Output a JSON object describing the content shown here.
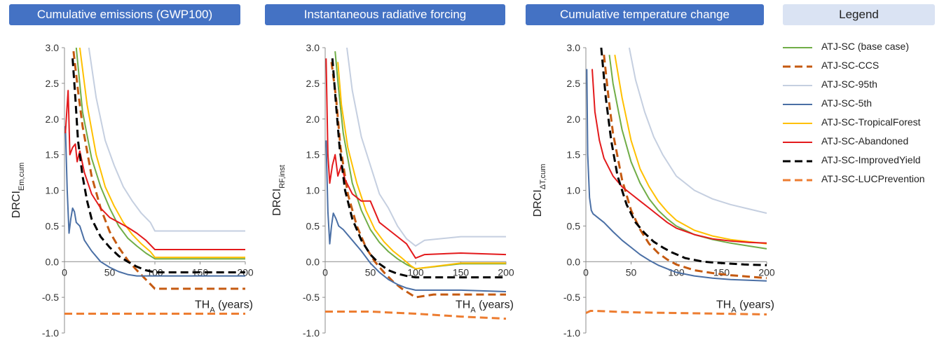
{
  "headers": {
    "panel1": "Cumulative emissions (GWP100)",
    "panel2": "Instantaneous radiative forcing",
    "panel3": "Cumulative temperature change",
    "legend": "Legend"
  },
  "xlabel": {
    "main": "TH",
    "sub": "A",
    "tail": " (years)"
  },
  "ylabels": [
    {
      "main": "DRCI",
      "sub": "Em,cum"
    },
    {
      "main": "DRCI",
      "sub": "RF,inst"
    },
    {
      "main": "DRCI",
      "sub": "ΔT,cum"
    }
  ],
  "legend": [
    {
      "label": "ATJ-SC (base case)",
      "color": "#70ad47",
      "dash": "solid"
    },
    {
      "label": "ATJ-SC-CCS",
      "color": "#c55a11",
      "dash": "dashed"
    },
    {
      "label": "ATJ-SC-95th",
      "color": "#c5cfe0",
      "dash": "solid"
    },
    {
      "label": "ATJ-SC-5th",
      "color": "#4a6fa5",
      "dash": "solid"
    },
    {
      "label": "ATJ-SC-TropicalForest",
      "color": "#ffc000",
      "dash": "solid"
    },
    {
      "label": "ATJ-SC-Abandoned",
      "color": "#e31a1c",
      "dash": "solid"
    },
    {
      "label": "ATJ-SC-ImprovedYield",
      "color": "#000000",
      "dash": "dashed"
    },
    {
      "label": "ATJ-SC-LUCPrevention",
      "color": "#ed7d31",
      "dash": "dashed"
    }
  ],
  "chart_data": [
    {
      "type": "line",
      "title": "Cumulative emissions (GWP100)",
      "xlabel": "TH_A (years)",
      "ylabel": "DRCI_Em,cum",
      "xlim": [
        0,
        200
      ],
      "ylim": [
        -1.0,
        3.0
      ],
      "xticks": [
        "0",
        "50",
        "100",
        "150",
        "200"
      ],
      "yticks": [
        "-1.0",
        "-0.5",
        "0.0",
        "0.5",
        "1.0",
        "1.5",
        "2.0",
        "2.5",
        "3.0"
      ],
      "series": [
        {
          "name": "ATJ-SC (base case)",
          "x": [
            13,
            20,
            30,
            40,
            50,
            60,
            70,
            80,
            90,
            100,
            150,
            200
          ],
          "y": [
            3.0,
            2.1,
            1.45,
            1.05,
            0.75,
            0.5,
            0.33,
            0.22,
            0.12,
            0.04,
            0.04,
            0.04
          ]
        },
        {
          "name": "ATJ-SC-CCS",
          "x": [
            10,
            15,
            20,
            30,
            40,
            50,
            60,
            70,
            80,
            90,
            100,
            150,
            200
          ],
          "y": [
            2.95,
            2.4,
            1.9,
            1.2,
            0.75,
            0.42,
            0.2,
            0.02,
            -0.12,
            -0.25,
            -0.38,
            -0.38,
            -0.38
          ]
        },
        {
          "name": "ATJ-SC-95th",
          "x": [
            27,
            35,
            45,
            55,
            65,
            75,
            85,
            95,
            100,
            150,
            200
          ],
          "y": [
            3.0,
            2.3,
            1.7,
            1.35,
            1.05,
            0.85,
            0.68,
            0.55,
            0.43,
            0.43,
            0.43
          ]
        },
        {
          "name": "ATJ-SC-5th",
          "x": [
            1,
            3,
            5,
            7,
            9,
            11,
            13,
            17,
            22,
            30,
            40,
            50,
            60,
            70,
            80,
            90,
            100,
            150,
            200
          ],
          "y": [
            1.9,
            1.0,
            0.4,
            0.6,
            0.75,
            0.7,
            0.55,
            0.5,
            0.3,
            0.15,
            0.0,
            -0.08,
            -0.14,
            -0.18,
            -0.2,
            -0.2,
            -0.2,
            -0.2,
            -0.2
          ]
        },
        {
          "name": "ATJ-SC-TropicalForest",
          "x": [
            17,
            25,
            35,
            45,
            55,
            65,
            75,
            85,
            95,
            100,
            150,
            200
          ],
          "y": [
            3.0,
            2.2,
            1.5,
            1.05,
            0.78,
            0.55,
            0.38,
            0.25,
            0.14,
            0.06,
            0.06,
            0.06
          ]
        },
        {
          "name": "ATJ-SC-Abandoned",
          "x": [
            1,
            4,
            6,
            9,
            12,
            14,
            17,
            22,
            30,
            40,
            50,
            60,
            70,
            80,
            90,
            100,
            150,
            200
          ],
          "y": [
            1.8,
            2.4,
            1.5,
            1.6,
            1.65,
            1.4,
            1.55,
            1.25,
            0.95,
            0.75,
            0.62,
            0.55,
            0.48,
            0.4,
            0.3,
            0.17,
            0.17,
            0.17
          ]
        },
        {
          "name": "ATJ-SC-ImprovedYield",
          "x": [
            9,
            12,
            15,
            20,
            25,
            30,
            40,
            50,
            60,
            70,
            80,
            90,
            100,
            150,
            200
          ],
          "y": [
            2.85,
            2.3,
            1.7,
            1.2,
            0.85,
            0.6,
            0.35,
            0.2,
            0.08,
            0.0,
            -0.07,
            -0.12,
            -0.15,
            -0.15,
            -0.15
          ]
        },
        {
          "name": "ATJ-SC-LUCPrevention",
          "x": [
            0,
            50,
            100,
            150,
            200
          ],
          "y": [
            -0.73,
            -0.73,
            -0.73,
            -0.73,
            -0.73
          ]
        }
      ]
    },
    {
      "type": "line",
      "title": "Instantaneous radiative forcing",
      "xlabel": "TH_A (years)",
      "ylabel": "DRCI_RF,inst",
      "xlim": [
        0,
        200
      ],
      "ylim": [
        -1.0,
        3.0
      ],
      "xticks": [
        "0",
        "50",
        "100",
        "150",
        "200"
      ],
      "yticks": [
        "-1.0",
        "-0.5",
        "0.0",
        "0.5",
        "1.0",
        "1.5",
        "2.0",
        "2.5",
        "3.0"
      ],
      "series": [
        {
          "name": "ATJ-SC (base case)",
          "x": [
            11,
            15,
            20,
            30,
            40,
            50,
            60,
            70,
            80,
            90,
            100,
            150,
            200
          ],
          "y": [
            2.95,
            2.4,
            1.8,
            1.1,
            0.72,
            0.45,
            0.27,
            0.14,
            0.04,
            -0.04,
            -0.1,
            -0.03,
            -0.03
          ]
        },
        {
          "name": "ATJ-SC-CCS",
          "x": [
            7,
            12,
            17,
            25,
            35,
            45,
            55,
            65,
            75,
            85,
            100,
            120,
            150,
            200
          ],
          "y": [
            2.8,
            2.3,
            1.6,
            0.95,
            0.5,
            0.2,
            0.0,
            -0.15,
            -0.28,
            -0.38,
            -0.5,
            -0.46,
            -0.46,
            -0.46
          ]
        },
        {
          "name": "ATJ-SC-95th",
          "x": [
            24,
            30,
            40,
            50,
            60,
            70,
            80,
            90,
            100,
            110,
            150,
            200
          ],
          "y": [
            3.0,
            2.4,
            1.75,
            1.35,
            0.95,
            0.75,
            0.5,
            0.32,
            0.22,
            0.3,
            0.35,
            0.35
          ]
        },
        {
          "name": "ATJ-SC-5th",
          "x": [
            1,
            3,
            5,
            7,
            9,
            12,
            15,
            20,
            30,
            40,
            50,
            60,
            70,
            80,
            90,
            100,
            150,
            200
          ],
          "y": [
            1.7,
            0.7,
            0.25,
            0.5,
            0.68,
            0.6,
            0.5,
            0.45,
            0.3,
            0.15,
            -0.02,
            -0.15,
            -0.25,
            -0.32,
            -0.37,
            -0.4,
            -0.4,
            -0.42
          ]
        },
        {
          "name": "ATJ-SC-TropicalForest",
          "x": [
            14,
            18,
            25,
            35,
            45,
            55,
            65,
            75,
            85,
            95,
            100,
            150,
            200
          ],
          "y": [
            2.8,
            2.2,
            1.6,
            1.1,
            0.72,
            0.45,
            0.28,
            0.15,
            0.05,
            -0.06,
            -0.1,
            -0.02,
            -0.02
          ]
        },
        {
          "name": "ATJ-SC-Abandoned",
          "x": [
            1,
            3,
            5,
            8,
            11,
            14,
            18,
            22,
            30,
            40,
            50,
            60,
            70,
            80,
            90,
            100,
            110,
            150,
            200
          ],
          "y": [
            2.85,
            1.5,
            1.1,
            1.35,
            1.5,
            1.2,
            1.35,
            1.15,
            0.95,
            0.85,
            0.85,
            0.55,
            0.45,
            0.35,
            0.25,
            0.05,
            0.1,
            0.12,
            0.1
          ]
        },
        {
          "name": "ATJ-SC-ImprovedYield",
          "x": [
            8,
            12,
            16,
            22,
            30,
            40,
            50,
            60,
            70,
            80,
            90,
            100,
            150,
            200
          ],
          "y": [
            2.85,
            2.2,
            1.6,
            1.0,
            0.6,
            0.3,
            0.1,
            -0.03,
            -0.12,
            -0.17,
            -0.2,
            -0.22,
            -0.22,
            -0.22
          ]
        },
        {
          "name": "ATJ-SC-LUCPrevention",
          "x": [
            0,
            50,
            100,
            150,
            200
          ],
          "y": [
            -0.7,
            -0.7,
            -0.73,
            -0.77,
            -0.8
          ]
        }
      ]
    },
    {
      "type": "line",
      "title": "Cumulative temperature change",
      "xlabel": "TH_A (years)",
      "ylabel": "DRCI_ΔT,cum",
      "xlim": [
        0,
        200
      ],
      "ylim": [
        -1.0,
        3.0
      ],
      "xticks": [
        "0",
        "50",
        "100",
        "150",
        "200"
      ],
      "yticks": [
        "-1.0",
        "-0.5",
        "0.0",
        "0.5",
        "1.0",
        "1.5",
        "2.0",
        "2.5",
        "3.0"
      ],
      "series": [
        {
          "name": "ATJ-SC (base case)",
          "x": [
            26,
            30,
            40,
            50,
            60,
            70,
            80,
            90,
            100,
            120,
            140,
            160,
            180,
            200
          ],
          "y": [
            2.9,
            2.5,
            1.85,
            1.4,
            1.1,
            0.88,
            0.72,
            0.6,
            0.5,
            0.38,
            0.31,
            0.26,
            0.22,
            0.18
          ]
        },
        {
          "name": "ATJ-SC-CCS",
          "x": [
            20,
            25,
            30,
            40,
            50,
            60,
            70,
            80,
            90,
            100,
            110,
            120,
            140,
            160,
            180,
            200
          ],
          "y": [
            2.9,
            2.3,
            1.8,
            1.15,
            0.72,
            0.45,
            0.25,
            0.12,
            0.03,
            -0.04,
            -0.08,
            -0.12,
            -0.16,
            -0.19,
            -0.21,
            -0.23
          ]
        },
        {
          "name": "ATJ-SC-95th",
          "x": [
            48,
            55,
            65,
            75,
            85,
            100,
            120,
            140,
            160,
            180,
            200
          ],
          "y": [
            3.0,
            2.55,
            2.1,
            1.75,
            1.5,
            1.2,
            1.0,
            0.88,
            0.8,
            0.74,
            0.68
          ]
        },
        {
          "name": "ATJ-SC-5th",
          "x": [
            1,
            2,
            4,
            6,
            8,
            10,
            15,
            20,
            30,
            40,
            50,
            60,
            70,
            80,
            90,
            100,
            120,
            140,
            160,
            180,
            200
          ],
          "y": [
            2.7,
            1.5,
            0.9,
            0.72,
            0.67,
            0.65,
            0.6,
            0.55,
            0.42,
            0.3,
            0.2,
            0.1,
            0.02,
            -0.05,
            -0.1,
            -0.15,
            -0.2,
            -0.23,
            -0.25,
            -0.26,
            -0.27
          ]
        },
        {
          "name": "ATJ-SC-TropicalForest",
          "x": [
            32,
            40,
            50,
            60,
            70,
            80,
            90,
            100,
            120,
            140,
            160,
            180,
            200
          ],
          "y": [
            2.9,
            2.3,
            1.7,
            1.3,
            1.05,
            0.85,
            0.7,
            0.58,
            0.44,
            0.36,
            0.31,
            0.28,
            0.25
          ]
        },
        {
          "name": "ATJ-SC-Abandoned",
          "x": [
            7,
            10,
            15,
            20,
            30,
            40,
            50,
            60,
            70,
            80,
            90,
            100,
            120,
            140,
            160,
            180,
            200
          ],
          "y": [
            2.7,
            2.1,
            1.7,
            1.45,
            1.2,
            1.05,
            0.95,
            0.85,
            0.75,
            0.65,
            0.55,
            0.47,
            0.38,
            0.32,
            0.29,
            0.27,
            0.26
          ]
        },
        {
          "name": "ATJ-SC-ImprovedYield",
          "x": [
            17,
            22,
            28,
            35,
            45,
            55,
            65,
            75,
            85,
            95,
            110,
            130,
            150,
            175,
            200
          ],
          "y": [
            3.0,
            2.3,
            1.7,
            1.2,
            0.8,
            0.55,
            0.4,
            0.28,
            0.2,
            0.13,
            0.05,
            0.0,
            -0.02,
            -0.04,
            -0.05
          ]
        },
        {
          "name": "ATJ-SC-LUCPrevention",
          "x": [
            0,
            5,
            10,
            30,
            50,
            100,
            150,
            200
          ],
          "y": [
            -0.72,
            -0.69,
            -0.69,
            -0.7,
            -0.71,
            -0.72,
            -0.73,
            -0.74
          ]
        }
      ]
    }
  ]
}
